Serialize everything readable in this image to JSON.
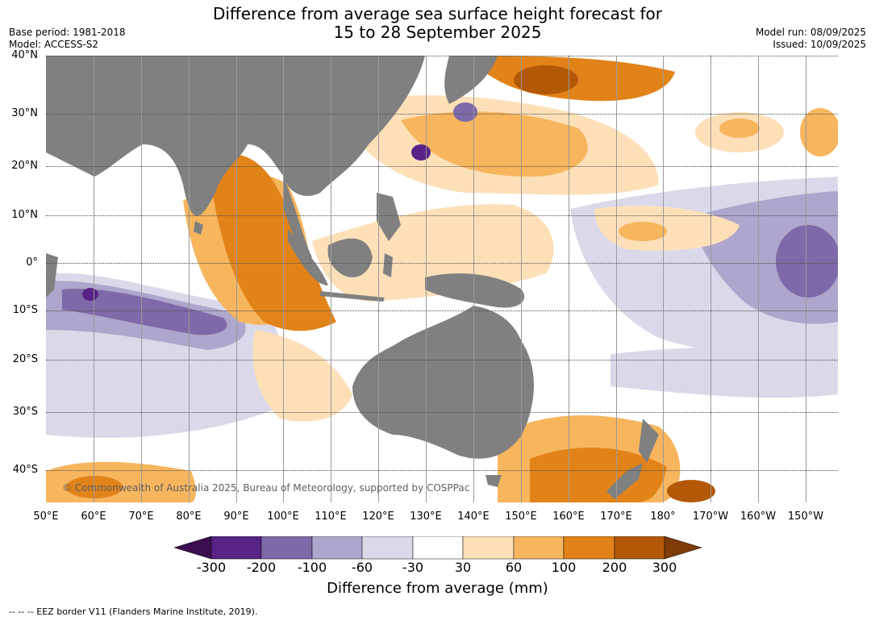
{
  "title": {
    "line1": "Difference from average sea surface height forecast for",
    "line2": "15 to 28 September 2025"
  },
  "meta_left": {
    "base_period": "Base period: 1981-2018",
    "model": "Model: ACCESS-S2"
  },
  "meta_right": {
    "model_run": "Model run: 08/09/2025",
    "issued": "Issued: 10/09/2025"
  },
  "map": {
    "copyright": "© Commonwealth of Australia 2025, Bureau of Meteorology, supported by COSPPac",
    "lat_labels": [
      "40°N",
      "30°N",
      "20°N",
      "10°N",
      "0°",
      "10°S",
      "20°S",
      "30°S",
      "40°S"
    ],
    "lon_labels": [
      "50°E",
      "60°E",
      "70°E",
      "80°E",
      "90°E",
      "100°E",
      "110°E",
      "120°E",
      "130°E",
      "140°E",
      "150°E",
      "160°E",
      "170°E",
      "180°",
      "170°W",
      "160°W",
      "150°W"
    ],
    "land_color": "#808080"
  },
  "colorbar": {
    "ticks": [
      "-300",
      "-200",
      "-100",
      "-60",
      "-30",
      "30",
      "60",
      "100",
      "200",
      "300"
    ],
    "colors": [
      "#3b0f4f",
      "#582386",
      "#7e6aa8",
      "#aea6cc",
      "#d9d9ea",
      "#ffffff",
      "#fde0b8",
      "#f7b55e",
      "#e18319",
      "#b35806",
      "#7f3b08"
    ],
    "label": "Difference from average (mm)"
  },
  "footnote": "--  --  -- EEZ border V11 (Flanders Marine Institute, 2019)."
}
